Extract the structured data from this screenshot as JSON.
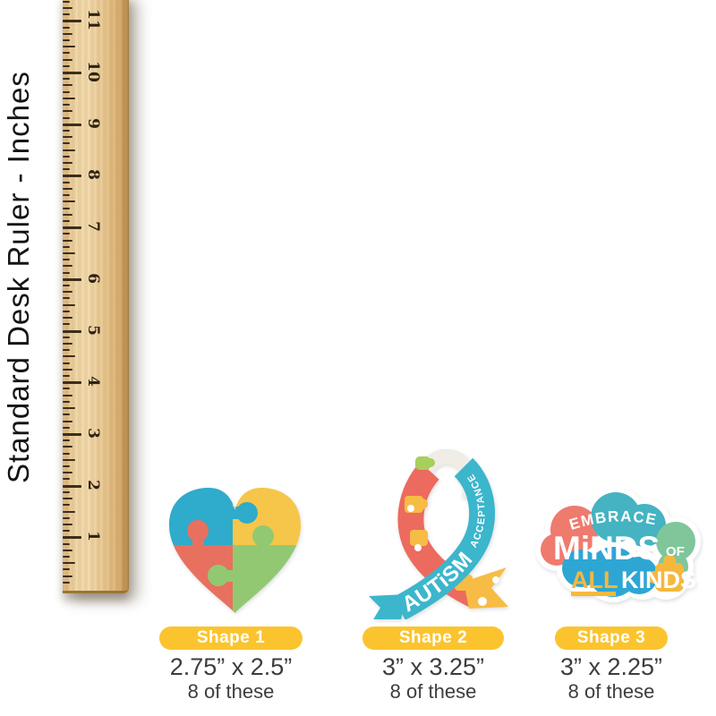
{
  "ruler": {
    "label": "Standard Desk Ruler - Inches",
    "unit": "inches",
    "numbers": [
      "1",
      "2",
      "3",
      "4",
      "5",
      "6",
      "7",
      "8",
      "9",
      "10",
      "11"
    ]
  },
  "shapes": [
    {
      "id": "puzzle-heart",
      "badge": "Shape 1",
      "dimensions": "2.75” x 2.5”",
      "count": "8 of these",
      "colors": {
        "teal": "#2fabcb",
        "yellow": "#f5c649",
        "coral": "#e8705f",
        "green": "#93c873"
      }
    },
    {
      "id": "autism-acceptance-ribbon",
      "badge": "Shape 2",
      "dimensions": "3” x 3.25”",
      "count": "8 of these",
      "word_main": "AUTiSM",
      "word_sub": "ACCEPTANCE",
      "colors": {
        "teal": "#3cb6cc",
        "coral": "#ed6a5e",
        "yellow": "#f6bc45",
        "green": "#a6cf5b",
        "inner": "#efede6",
        "white": "#ffffff"
      }
    },
    {
      "id": "embrace-minds-cloud",
      "badge": "Shape 3",
      "dimensions": "3” x 2.25”",
      "count": "8 of these",
      "text_embrace": "EMBRACE",
      "text_minds": "MiNDS",
      "text_of": "OF",
      "text_all": "ALL",
      "text_kinds": "KINDS",
      "colors": {
        "coral": "#ee7b6e",
        "teal": "#45b3c2",
        "green": "#7fc69b",
        "blue": "#2ea6d4",
        "yellow": "#f5b83d",
        "white": "#ffffff"
      }
    }
  ],
  "badge_color": "#fbc42e"
}
